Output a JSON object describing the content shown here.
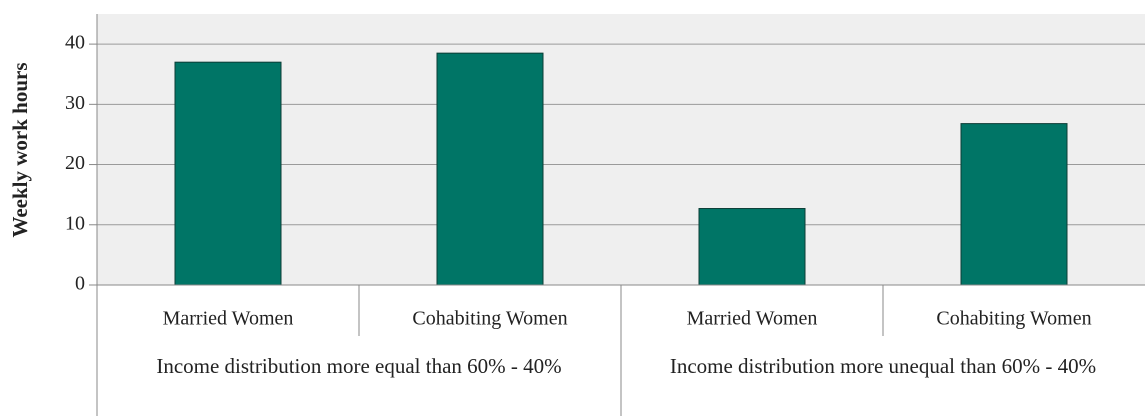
{
  "chart_data": {
    "type": "bar",
    "y_label": "Weekly work hours",
    "color": "#007566",
    "groups": [
      {
        "name": "Income distribution more equal than 60% - 40%",
        "categories": [
          "Married Women",
          "Cohabiting Women"
        ],
        "values": [
          37,
          38.5
        ]
      },
      {
        "name": "Income distribution more unequal than 60% - 40%",
        "categories": [
          "Married Women",
          "Cohabiting Women"
        ],
        "values": [
          12.7,
          26.8
        ]
      }
    ],
    "ylim": [
      0,
      45
    ],
    "yticks": [
      0,
      10,
      20,
      30,
      40
    ],
    "grid": true
  }
}
